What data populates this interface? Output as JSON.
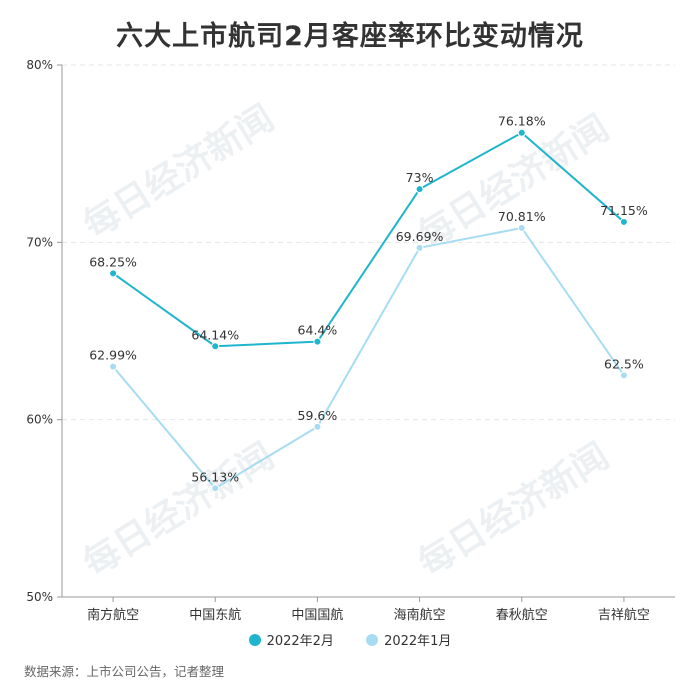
{
  "title": "六大上市航司2月客座率环比变动情况",
  "source": "数据来源：上市公司公告，记者整理",
  "watermark": "每日经济新闻",
  "colors": {
    "feb": "#1fb5cc",
    "jan": "#a8dcf3",
    "axis": "#999999",
    "grid": "#e6e6e6",
    "text": "#333333",
    "watermark": "#e9ecef"
  },
  "chart_data": {
    "type": "line",
    "categories": [
      "南方航空",
      "中国东航",
      "中国国航",
      "海南航空",
      "春秋航空",
      "吉祥航空"
    ],
    "ylim": [
      50,
      80
    ],
    "yticks": [
      50,
      60,
      70,
      80
    ],
    "ytick_labels": [
      "50%",
      "60%",
      "70%",
      "80%"
    ],
    "grid": true,
    "legend_position": "bottom",
    "series": [
      {
        "name": "2022年2月",
        "values": [
          68.25,
          64.14,
          64.4,
          73,
          76.18,
          71.15
        ],
        "labels": [
          "68.25%",
          "64.14%",
          "64.4%",
          "73%",
          "76.18%",
          "71.15%"
        ],
        "color": "#1fb5cc"
      },
      {
        "name": "2022年1月",
        "values": [
          62.99,
          56.13,
          59.6,
          69.69,
          70.81,
          62.5
        ],
        "labels": [
          "62.99%",
          "56.13%",
          "59.6%",
          "69.69%",
          "70.81%",
          "62.5%"
        ],
        "color": "#a8dcf3"
      }
    ]
  }
}
